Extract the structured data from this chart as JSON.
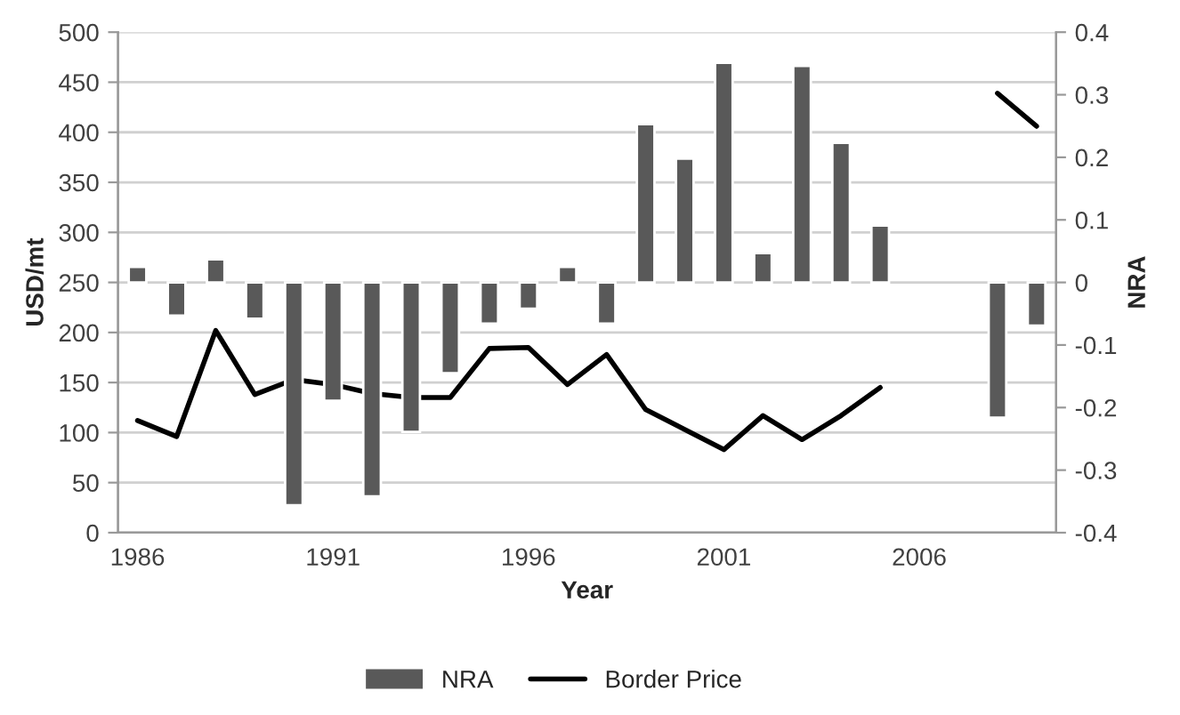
{
  "chart_data": {
    "type": "bar",
    "xlabel": "Year",
    "ylabel": "USD/mt",
    "y2label": "NRA",
    "categories": [
      "1986",
      null,
      null,
      null,
      null,
      "1991",
      null,
      null,
      null,
      null,
      "1996",
      null,
      null,
      null,
      null,
      "2001",
      null,
      null,
      null,
      null,
      "2006",
      null,
      null,
      null
    ],
    "series": [
      {
        "name": "NRA",
        "axis": "y2",
        "color": "#595959",
        "values": [
          0.025,
          -0.053,
          0.037,
          -0.058,
          -0.356,
          -0.189,
          -0.342,
          -0.239,
          -0.145,
          -0.066,
          -0.042,
          0.025,
          -0.066,
          0.253,
          0.198,
          0.351,
          0.047,
          0.346,
          0.223,
          0.091,
          null,
          null,
          -0.216,
          -0.069
        ]
      },
      {
        "name": "Border Price",
        "type": "line",
        "axis": "y",
        "color": "#000000",
        "values": [
          112,
          96,
          202,
          138,
          153,
          148,
          139,
          135,
          135,
          184,
          185,
          148,
          178,
          123,
          103,
          83,
          117,
          93,
          117,
          145,
          null,
          null,
          439,
          406
        ]
      }
    ],
    "ylim": [
      0,
      500
    ],
    "yticks": [
      0,
      50,
      100,
      150,
      200,
      250,
      300,
      350,
      400,
      450,
      500
    ],
    "y2lim": [
      -0.4,
      0.4
    ],
    "y2ticks": [
      -0.4,
      -0.3,
      -0.2,
      -0.1,
      0,
      0.1,
      0.2,
      0.3,
      0.4
    ],
    "grid": "y",
    "legend": "bottom",
    "marker": "none",
    "line_style": "solid"
  }
}
